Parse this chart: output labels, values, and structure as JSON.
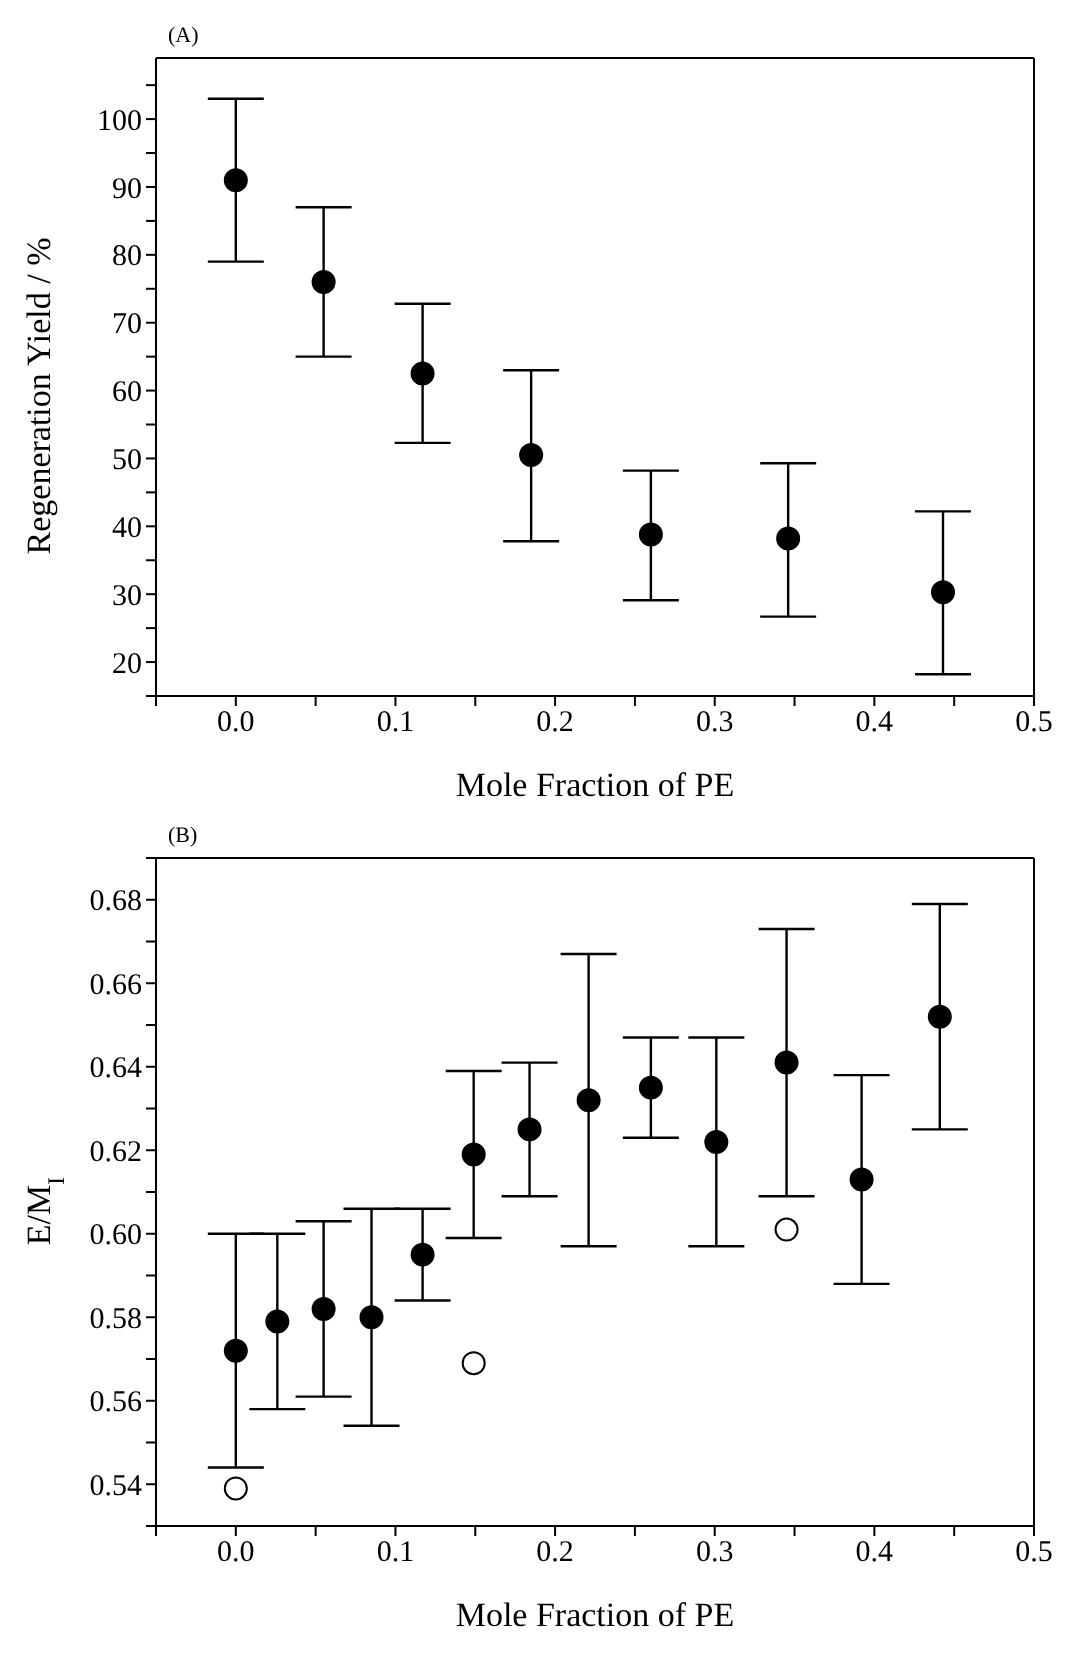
{
  "chart_data": [
    {
      "type": "scatter",
      "title": "(A)",
      "xlabel": "Mole Fraction of PE",
      "ylabel": "Regeneration Yield / %",
      "xlim": [
        -0.05,
        0.5
      ],
      "xticks": [
        {
          "value": -0.05,
          "label": null
        },
        {
          "value": 0,
          "label": "0.0"
        },
        {
          "value": 0.05,
          "label": null
        },
        0.1,
        {
          "value": 0.15,
          "label": null
        },
        0.2,
        {
          "value": 0.25,
          "label": null
        },
        0.3,
        {
          "value": 0.35,
          "label": null
        },
        0.4,
        {
          "value": 0.45,
          "label": null
        },
        0.5
      ],
      "ylim": [
        15,
        109
      ],
      "yticks": [
        {
          "value": 15,
          "label": null
        },
        20,
        {
          "value": 25,
          "label": null
        },
        30,
        {
          "value": 35,
          "label": null
        },
        40,
        {
          "value": 45,
          "label": null
        },
        50,
        {
          "value": 55,
          "label": null
        },
        60,
        {
          "value": 65,
          "label": null
        },
        70,
        {
          "value": 75,
          "label": null
        },
        80,
        {
          "value": 85,
          "label": null
        },
        90,
        {
          "value": 95,
          "label": null
        },
        100,
        {
          "value": 105,
          "label": null
        }
      ],
      "marker": "circle",
      "series": [
        {
          "color": "#000000",
          "x": [
            0,
            0.055,
            0.117,
            0.185,
            0.26,
            0.346,
            0.443
          ],
          "values": [
            91,
            76,
            62.5,
            50.5,
            38.8,
            38.2,
            30.3
          ],
          "errors": [
            [
              79,
              103
            ],
            [
              65,
              87
            ],
            [
              52.3,
              72.8
            ],
            [
              37.8,
              63
            ],
            [
              29.1,
              48.2
            ],
            [
              26.7,
              49.3
            ],
            [
              18.2,
              42.2
            ]
          ]
        }
      ]
    },
    {
      "type": "scatter",
      "title": "(B)",
      "xlabel": "Mole Fraction of PE",
      "ylabel": "E/M$_{I}$",
      "xlim": [
        -0.05,
        0.5
      ],
      "xticks": [
        {
          "value": -0.05,
          "label": null
        },
        {
          "value": 0,
          "label": "0.0"
        },
        {
          "value": 0.05,
          "label": null
        },
        0.1,
        {
          "value": 0.15,
          "label": null
        },
        0.2,
        {
          "value": 0.25,
          "label": null
        },
        0.3,
        {
          "value": 0.35,
          "label": null
        },
        0.4,
        {
          "value": 0.45,
          "label": null
        },
        0.5
      ],
      "ylim": [
        0.53,
        0.69
      ],
      "yticks": [
        {
          "value": 0.53,
          "label": null
        },
        0.54,
        {
          "value": 0.55,
          "label": null
        },
        0.56,
        {
          "value": 0.57,
          "label": null
        },
        0.58,
        {
          "value": 0.59,
          "label": null
        },
        {
          "value": 0.6,
          "label": "0.60"
        },
        {
          "value": 0.61,
          "label": null
        },
        0.62,
        {
          "value": 0.63,
          "label": null
        },
        0.64,
        {
          "value": 0.65,
          "label": null
        },
        0.66,
        {
          "value": 0.67,
          "label": null
        },
        0.68,
        {
          "value": 0.69,
          "label": null
        }
      ],
      "marker": "circle",
      "series": [
        {
          "color": "#000000",
          "x": [
            0,
            0.026,
            0.055,
            0.085,
            0.117,
            0.149,
            0.184,
            0.221,
            0.26,
            0.301,
            0.345,
            0.392,
            0.441
          ],
          "values": [
            0.572,
            0.579,
            0.582,
            0.58,
            0.595,
            0.619,
            0.625,
            0.632,
            0.635,
            0.622,
            0.641,
            0.613,
            0.652
          ],
          "errors": [
            [
              0.544,
              0.6
            ],
            [
              0.558,
              0.6
            ],
            [
              0.561,
              0.603
            ],
            [
              0.554,
              0.606
            ],
            [
              0.584,
              0.606
            ],
            [
              0.599,
              0.639
            ],
            [
              0.609,
              0.641
            ],
            [
              0.597,
              0.667
            ],
            [
              0.623,
              0.647
            ],
            [
              0.597,
              0.647
            ],
            [
              0.609,
              0.673
            ],
            [
              0.588,
              0.638
            ],
            [
              0.625,
              0.679
            ]
          ]
        },
        {
          "color": "#ffffff",
          "x": [
            0,
            0.149,
            0.345
          ],
          "values": [
            0.539,
            0.569,
            0.601
          ]
        }
      ]
    }
  ]
}
